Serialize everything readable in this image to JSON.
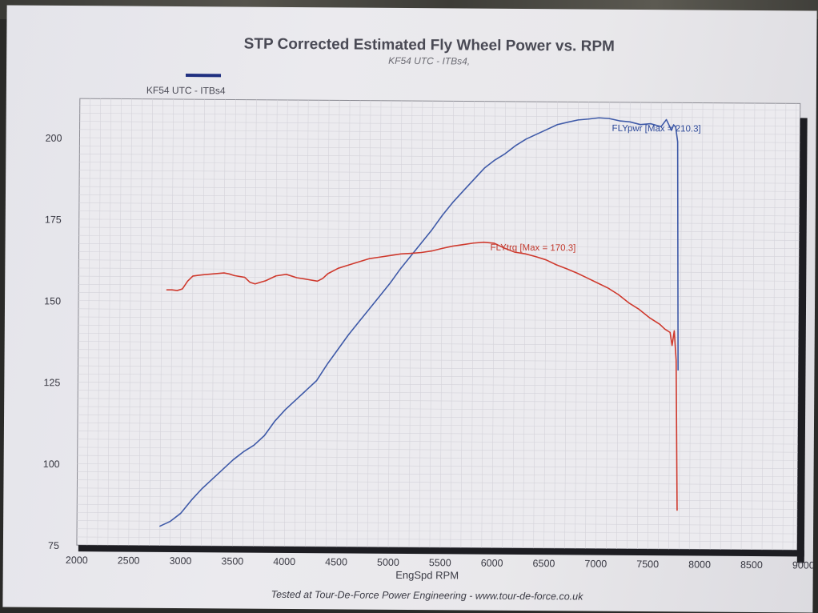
{
  "chart_data": {
    "type": "line",
    "title": "STP Corrected Estimated Fly Wheel Power vs. RPM",
    "subtitle": "KF54 UTC - ITBs4,",
    "legend": [
      {
        "label": "KF54 UTC - ITBs4",
        "color": "#2a3f8f"
      }
    ],
    "xlabel": "EngSpd RPM",
    "ylabel": "",
    "xlim": [
      2000,
      9000
    ],
    "ylim": [
      75,
      212
    ],
    "xticks": [
      "2000",
      "2500",
      "3000",
      "3500",
      "4000",
      "4500",
      "5000",
      "5500",
      "6000",
      "6500",
      "7000",
      "7500",
      "8000",
      "8500",
      "9000"
    ],
    "yticks": [
      "75",
      "100",
      "125",
      "150",
      "175",
      "200"
    ],
    "grid": true,
    "series": [
      {
        "name": "FLYpwr",
        "color": "#3f5aa8",
        "annotation": "FLYpwr [Max = 210.3]",
        "x": [
          2800,
          2900,
          3000,
          3100,
          3200,
          3300,
          3400,
          3500,
          3600,
          3700,
          3800,
          3900,
          4000,
          4100,
          4200,
          4300,
          4400,
          4500,
          4600,
          4700,
          4800,
          4900,
          5000,
          5100,
          5200,
          5300,
          5400,
          5500,
          5600,
          5700,
          5800,
          5900,
          6000,
          6100,
          6200,
          6300,
          6400,
          6500,
          6600,
          6700,
          6800,
          6900,
          7000,
          7100,
          7200,
          7300,
          7400,
          7500,
          7600,
          7650,
          7700,
          7720,
          7740,
          7760,
          7780
        ],
        "y": [
          81,
          82.5,
          85,
          89,
          92.5,
          95.5,
          98.5,
          101.5,
          104,
          106,
          109,
          113.5,
          117,
          120,
          123,
          126,
          131,
          135.5,
          140,
          144,
          148,
          152,
          156,
          160.5,
          164.5,
          168.5,
          172.5,
          177,
          181,
          184.5,
          188,
          191.5,
          194,
          196,
          198.5,
          200.5,
          202,
          203.5,
          205,
          205.8,
          206.5,
          206.8,
          207.2,
          207,
          206.3,
          206,
          205.2,
          205.5,
          204.6,
          206.8,
          203.5,
          205.2,
          204.5,
          200,
          130
        ]
      },
      {
        "name": "FLYtrq",
        "color": "#cf3a2e",
        "annotation": "FLYtrq [Max = 170.3]",
        "x": [
          2850,
          2900,
          2950,
          3000,
          3050,
          3100,
          3150,
          3200,
          3300,
          3400,
          3450,
          3500,
          3600,
          3650,
          3700,
          3750,
          3800,
          3900,
          4000,
          4100,
          4200,
          4300,
          4350,
          4400,
          4500,
          4600,
          4700,
          4800,
          4900,
          5000,
          5100,
          5200,
          5300,
          5400,
          5500,
          5600,
          5700,
          5800,
          5900,
          6000,
          6100,
          6200,
          6300,
          6400,
          6500,
          6600,
          6700,
          6800,
          6900,
          7000,
          7100,
          7200,
          7300,
          7400,
          7500,
          7600,
          7650,
          7700,
          7720,
          7740,
          7760,
          7780
        ],
        "y": [
          153.5,
          153.5,
          153.3,
          153.8,
          156.2,
          157.8,
          158,
          158.2,
          158.5,
          158.8,
          158.5,
          158,
          157.5,
          156,
          155.5,
          156,
          156.5,
          158,
          158.5,
          157.5,
          157,
          156.5,
          157.3,
          158.8,
          160.5,
          161.5,
          162.5,
          163.5,
          164,
          164.5,
          165,
          165.2,
          165.5,
          166,
          166.8,
          167.5,
          168,
          168.5,
          168.8,
          168.5,
          167,
          165.8,
          165.3,
          164.5,
          163.5,
          162,
          160.8,
          159.5,
          158,
          156.5,
          155,
          153,
          150.5,
          148.5,
          146,
          144,
          142.5,
          141.5,
          137.5,
          142,
          133,
          87
        ]
      }
    ]
  }
}
